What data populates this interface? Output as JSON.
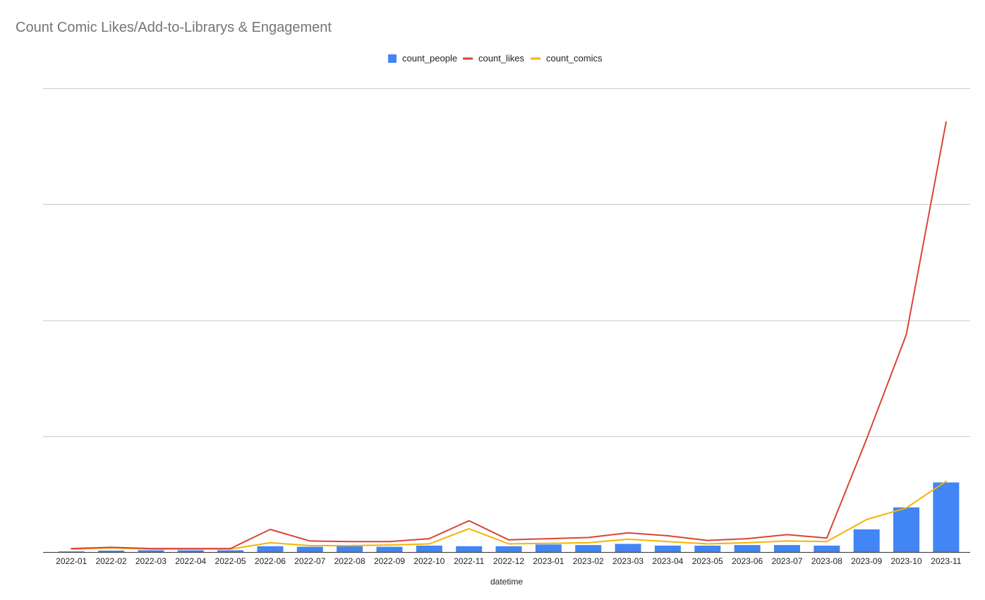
{
  "chart_data": {
    "type": "bar",
    "title": "Count Comic Likes/Add-to-Librarys & Engagement",
    "xlabel": "datetime",
    "ylabel": "",
    "ylim": [
      0,
      400
    ],
    "grid": true,
    "legend_position": "top-center",
    "categories": [
      "2022-01",
      "2022-02",
      "2022-03",
      "2022-04",
      "2022-05",
      "2022-06",
      "2022-07",
      "2022-08",
      "2022-09",
      "2022-10",
      "2022-11",
      "2022-12",
      "2023-01",
      "2023-02",
      "2023-03",
      "2023-04",
      "2023-05",
      "2023-06",
      "2023-07",
      "2023-08",
      "2023-09",
      "2023-10",
      "2023-11"
    ],
    "series": [
      {
        "name": "count_people",
        "type": "bar",
        "color": "#4285F4",
        "values": [
          0.5,
          1.2,
          1.5,
          1.5,
          1.5,
          5,
          4.5,
          5,
          4.5,
          5.5,
          5,
          5,
          6.5,
          6,
          7,
          5.5,
          5.5,
          6,
          6,
          5.5,
          19.5,
          38.5,
          60
        ]
      },
      {
        "name": "count_likes",
        "type": "line",
        "color": "#DB4437",
        "values": [
          3,
          4,
          3,
          3,
          3,
          19.5,
          9.5,
          9,
          9,
          11.5,
          27,
          10.5,
          11.5,
          12.5,
          16.5,
          14,
          10,
          11.5,
          15,
          12,
          97.5,
          187.5,
          371
        ]
      },
      {
        "name": "count_comics",
        "type": "line",
        "color": "#F4B400",
        "values": [
          2.5,
          3.5,
          2.5,
          2.5,
          2.5,
          8,
          5.5,
          5.5,
          6,
          7,
          20,
          7,
          7.5,
          8,
          11,
          9,
          7,
          8,
          9.5,
          9,
          28,
          38,
          61
        ]
      }
    ]
  }
}
